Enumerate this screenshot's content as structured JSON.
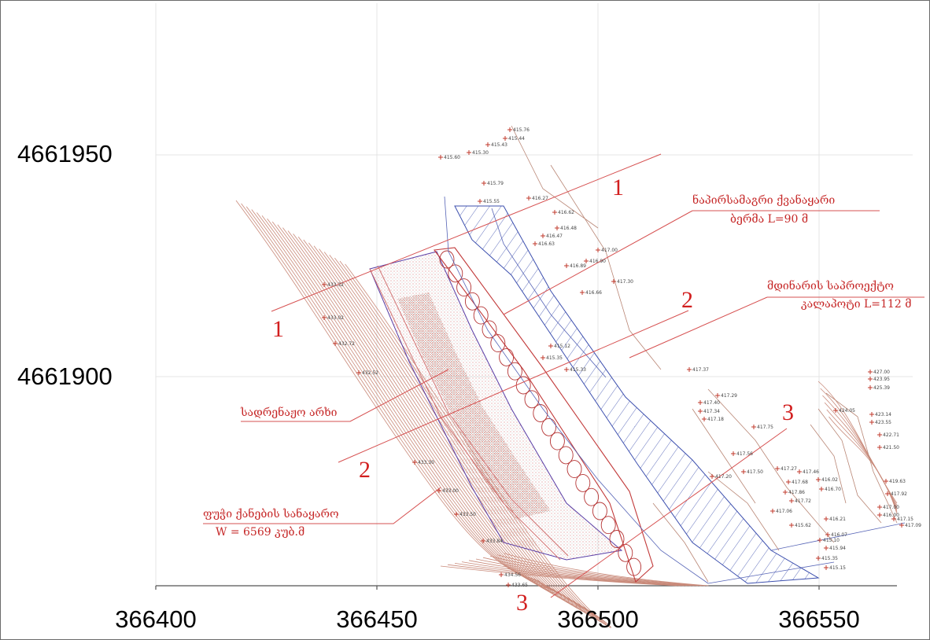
{
  "map": {
    "x_axis_labels": [
      "366400",
      "366450",
      "366500",
      "366550"
    ],
    "y_axis_labels": [
      "4661950",
      "4661900"
    ],
    "section_markers": [
      "1",
      "1",
      "2",
      "2",
      "3",
      "3"
    ],
    "annotations": {
      "berm_line1": "ნაპირსამაგრი ქვანაყარი",
      "berm_line2": "ბერმა L=90 მ",
      "river_line1": "მდინარის საპროექტო",
      "river_line2": "კალაპოტი L=112 მ",
      "drainage": "სადრენაჟო არხი",
      "spoil_line1": "ფუჭი ქანების სანაყარო",
      "spoil_line2": "W = 6569 კუბ.მ"
    },
    "spot_heights_left": [
      "433.32",
      "433.02",
      "432.72",
      "432.52",
      "433.30",
      "433.00",
      "433.50",
      "433.84",
      "434.56",
      "433.65"
    ],
    "spot_heights_top": [
      "415.76",
      "415.44",
      "415.43",
      "415.30",
      "415.60",
      "415.79",
      "415.55",
      "416.27",
      "416.62",
      "416.48",
      "416.47",
      "416.63",
      "417.00",
      "416.90",
      "416.89",
      "417.30",
      "416.66",
      "415.12",
      "415.35",
      "415.33"
    ],
    "spot_heights_right": [
      "417.37",
      "417.29",
      "417.40",
      "417.34",
      "417.18",
      "417.75",
      "417.56",
      "417.27",
      "417.50",
      "417.20",
      "417.68",
      "417.86",
      "417.72",
      "417.06",
      "417.46",
      "416.02",
      "416.70",
      "415.62",
      "416.21",
      "415.10",
      "415.94",
      "415.35",
      "416.07",
      "415.15"
    ],
    "spot_heights_far_right": [
      "427.00",
      "423.95",
      "425.39",
      "424.05",
      "423.14",
      "423.55",
      "422.71",
      "421.50",
      "419.63",
      "417.92",
      "417.00",
      "416.00",
      "417.15",
      "417.09"
    ],
    "colors": {
      "contour": "#c98a7a",
      "red_label": "#d21f1f",
      "channel": "#3c4fae",
      "grid": "#e4e4e4"
    }
  }
}
